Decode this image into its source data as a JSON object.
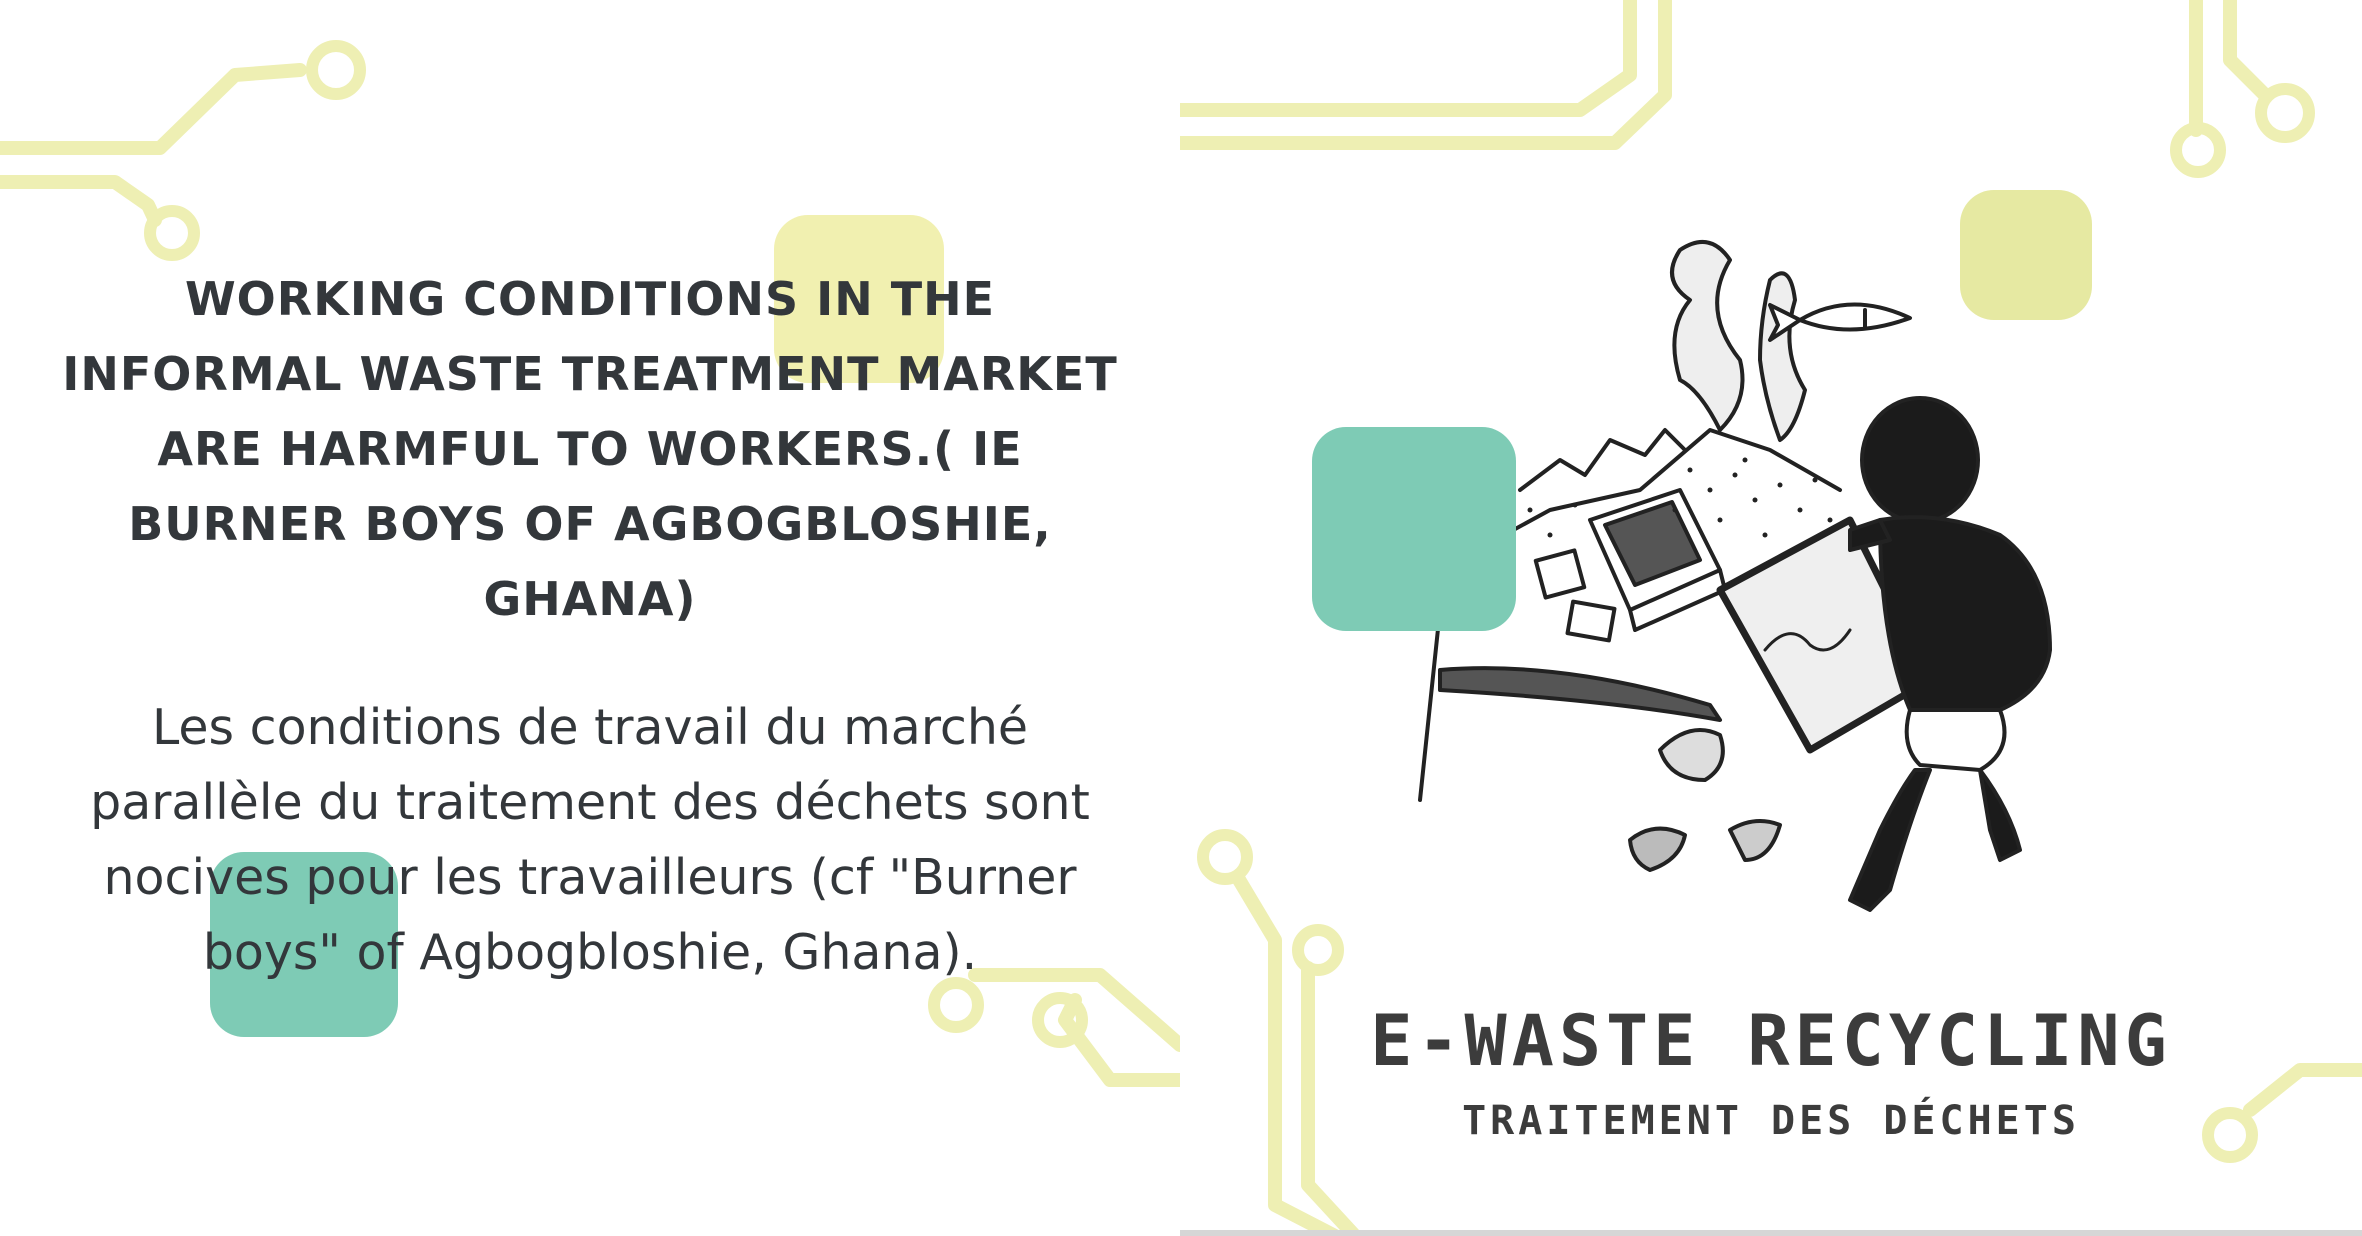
{
  "left_page": {
    "heading": "WORKING CONDITIONS IN THE INFORMAL WASTE TREATMENT MARKET ARE HARMFUL TO WORKERS.( IE BURNER BOYS OF AGBOGBLOSHIE, GHANA)",
    "body_fr": "Les conditions de travail du marché parallèle du traitement des déchets sont nocives pour les travailleurs (cf \"Burner boys\" of Agbogbloshie, Ghana)."
  },
  "right_page": {
    "banner_title": "E-WASTE RECYCLING",
    "banner_subtitle": "TRAITEMENT DES DÉCHETS",
    "illustration": "sketch of a boy carrying a computer monitor among scattered e-waste"
  },
  "colors": {
    "circuit_yellow": "#eeefb3",
    "accent_green": "#7ecbb5",
    "accent_yellow": "#f1f0b0",
    "text_dark": "#33373b"
  }
}
